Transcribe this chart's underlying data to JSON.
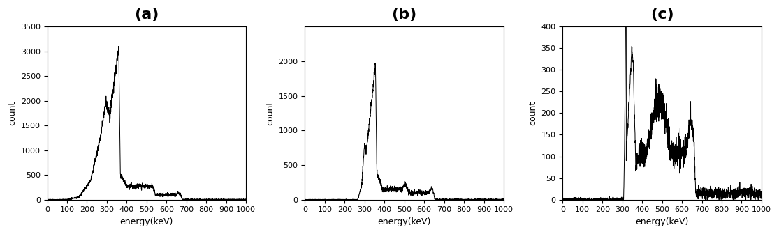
{
  "panels": [
    {
      "label": "(a)",
      "ylabel": "count",
      "xlabel": "energy(keV)",
      "xlim": [
        0,
        1000
      ],
      "ylim": [
        0,
        3500
      ],
      "yticks": [
        0,
        500,
        1000,
        1500,
        2000,
        2500,
        3000,
        3500
      ],
      "xticks": [
        0,
        100,
        200,
        300,
        400,
        500,
        600,
        700,
        800,
        900,
        1000
      ]
    },
    {
      "label": "(b)",
      "ylabel": "count",
      "xlabel": "energy(keV)",
      "xlim": [
        0,
        1000
      ],
      "ylim": [
        0,
        2500
      ],
      "yticks": [
        0,
        500,
        1000,
        1500,
        2000
      ],
      "xticks": [
        0,
        100,
        200,
        300,
        400,
        500,
        600,
        700,
        800,
        900,
        1000
      ]
    },
    {
      "label": "(c)",
      "ylabel": "count",
      "xlabel": "energy(keV)",
      "xlim": [
        0,
        1000
      ],
      "ylim": [
        0,
        400
      ],
      "yticks": [
        0,
        50,
        100,
        150,
        200,
        250,
        300,
        350,
        400
      ],
      "xticks": [
        0,
        100,
        200,
        300,
        400,
        500,
        600,
        700,
        800,
        900,
        1000
      ]
    }
  ],
  "line_color": "#000000",
  "line_width": 0.7,
  "title_fontsize": 16,
  "label_fontsize": 9,
  "tick_fontsize": 8,
  "background_color": "#ffffff"
}
